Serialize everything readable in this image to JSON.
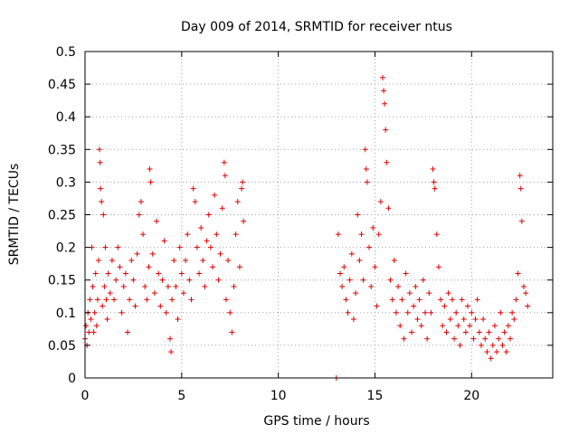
{
  "chart_data": {
    "type": "scatter",
    "title": "Day 009 of 2014, SRMTID for receiver ntus",
    "xlabel": "GPS time / hours",
    "ylabel": "SRMTID / TECUs",
    "xlim": [
      0,
      24.2
    ],
    "ylim": [
      0,
      0.5
    ],
    "x_ticks": [
      0,
      5,
      10,
      15,
      20
    ],
    "x_tick_labels": [
      "0",
      "5",
      "10",
      "15",
      "20"
    ],
    "y_ticks": [
      0,
      0.05,
      0.1,
      0.15,
      0.2,
      0.25,
      0.3,
      0.35,
      0.4,
      0.45,
      0.5
    ],
    "y_tick_labels": [
      "0",
      "0.05",
      "0.1",
      "0.15",
      "0.2",
      "0.25",
      "0.3",
      "0.35",
      "0.4",
      "0.45",
      "0.5"
    ],
    "grid": true,
    "marker": "+",
    "color": "#e00000",
    "series": [
      {
        "name": "SRMTID",
        "points": [
          [
            0.0,
            0.06
          ],
          [
            0.05,
            0.08
          ],
          [
            0.1,
            0.05
          ],
          [
            0.15,
            0.1
          ],
          [
            0.2,
            0.07
          ],
          [
            0.25,
            0.12
          ],
          [
            0.3,
            0.09
          ],
          [
            0.35,
            0.2
          ],
          [
            0.4,
            0.14
          ],
          [
            0.45,
            0.07
          ],
          [
            0.5,
            0.1
          ],
          [
            0.55,
            0.16
          ],
          [
            0.6,
            0.08
          ],
          [
            0.65,
            0.12
          ],
          [
            0.7,
            0.18
          ],
          [
            0.75,
            0.35
          ],
          [
            0.78,
            0.33
          ],
          [
            0.8,
            0.29
          ],
          [
            0.85,
            0.27
          ],
          [
            0.9,
            0.11
          ],
          [
            0.95,
            0.25
          ],
          [
            1.0,
            0.14
          ],
          [
            1.05,
            0.2
          ],
          [
            1.1,
            0.12
          ],
          [
            1.15,
            0.09
          ],
          [
            1.2,
            0.16
          ],
          [
            1.3,
            0.13
          ],
          [
            1.4,
            0.18
          ],
          [
            1.5,
            0.12
          ],
          [
            1.6,
            0.15
          ],
          [
            1.7,
            0.2
          ],
          [
            1.8,
            0.17
          ],
          [
            1.9,
            0.1
          ],
          [
            2.0,
            0.14
          ],
          [
            2.1,
            0.16
          ],
          [
            2.2,
            0.07
          ],
          [
            2.3,
            0.12
          ],
          [
            2.4,
            0.18
          ],
          [
            2.5,
            0.15
          ],
          [
            2.6,
            0.11
          ],
          [
            2.7,
            0.19
          ],
          [
            2.8,
            0.25
          ],
          [
            2.9,
            0.27
          ],
          [
            3.0,
            0.22
          ],
          [
            3.1,
            0.14
          ],
          [
            3.2,
            0.12
          ],
          [
            3.3,
            0.17
          ],
          [
            3.35,
            0.32
          ],
          [
            3.4,
            0.3
          ],
          [
            3.5,
            0.19
          ],
          [
            3.6,
            0.13
          ],
          [
            3.7,
            0.24
          ],
          [
            3.8,
            0.16
          ],
          [
            3.9,
            0.11
          ],
          [
            4.0,
            0.15
          ],
          [
            4.1,
            0.21
          ],
          [
            4.2,
            0.1
          ],
          [
            4.3,
            0.14
          ],
          [
            4.4,
            0.06
          ],
          [
            4.45,
            0.04
          ],
          [
            4.5,
            0.12
          ],
          [
            4.6,
            0.18
          ],
          [
            4.7,
            0.14
          ],
          [
            4.8,
            0.09
          ],
          [
            4.9,
            0.2
          ],
          [
            5.0,
            0.16
          ],
          [
            5.1,
            0.13
          ],
          [
            5.2,
            0.18
          ],
          [
            5.3,
            0.22
          ],
          [
            5.4,
            0.15
          ],
          [
            5.5,
            0.12
          ],
          [
            5.6,
            0.29
          ],
          [
            5.7,
            0.27
          ],
          [
            5.8,
            0.2
          ],
          [
            5.9,
            0.16
          ],
          [
            6.0,
            0.23
          ],
          [
            6.1,
            0.18
          ],
          [
            6.2,
            0.14
          ],
          [
            6.3,
            0.21
          ],
          [
            6.4,
            0.25
          ],
          [
            6.5,
            0.2
          ],
          [
            6.6,
            0.17
          ],
          [
            6.7,
            0.28
          ],
          [
            6.8,
            0.22
          ],
          [
            6.9,
            0.15
          ],
          [
            7.0,
            0.19
          ],
          [
            7.1,
            0.26
          ],
          [
            7.2,
            0.33
          ],
          [
            7.25,
            0.31
          ],
          [
            7.3,
            0.12
          ],
          [
            7.4,
            0.18
          ],
          [
            7.5,
            0.1
          ],
          [
            7.6,
            0.07
          ],
          [
            7.7,
            0.14
          ],
          [
            7.8,
            0.22
          ],
          [
            7.9,
            0.27
          ],
          [
            8.0,
            0.17
          ],
          [
            8.1,
            0.29
          ],
          [
            8.15,
            0.3
          ],
          [
            8.2,
            0.24
          ],
          [
            13.0,
            0.0
          ],
          [
            13.1,
            0.22
          ],
          [
            13.2,
            0.16
          ],
          [
            13.3,
            0.14
          ],
          [
            13.4,
            0.17
          ],
          [
            13.5,
            0.12
          ],
          [
            13.6,
            0.1
          ],
          [
            13.7,
            0.15
          ],
          [
            13.8,
            0.19
          ],
          [
            13.9,
            0.09
          ],
          [
            14.0,
            0.13
          ],
          [
            14.1,
            0.25
          ],
          [
            14.2,
            0.18
          ],
          [
            14.3,
            0.22
          ],
          [
            14.4,
            0.15
          ],
          [
            14.5,
            0.35
          ],
          [
            14.55,
            0.32
          ],
          [
            14.6,
            0.3
          ],
          [
            14.7,
            0.2
          ],
          [
            14.8,
            0.14
          ],
          [
            14.9,
            0.23
          ],
          [
            15.0,
            0.17
          ],
          [
            15.1,
            0.11
          ],
          [
            15.2,
            0.22
          ],
          [
            15.3,
            0.27
          ],
          [
            15.4,
            0.46
          ],
          [
            15.45,
            0.44
          ],
          [
            15.5,
            0.42
          ],
          [
            15.55,
            0.38
          ],
          [
            15.6,
            0.33
          ],
          [
            15.7,
            0.26
          ],
          [
            15.8,
            0.15
          ],
          [
            15.9,
            0.12
          ],
          [
            16.0,
            0.18
          ],
          [
            16.1,
            0.1
          ],
          [
            16.2,
            0.14
          ],
          [
            16.3,
            0.08
          ],
          [
            16.4,
            0.12
          ],
          [
            16.5,
            0.06
          ],
          [
            16.6,
            0.16
          ],
          [
            16.7,
            0.1
          ],
          [
            16.8,
            0.13
          ],
          [
            16.9,
            0.07
          ],
          [
            17.0,
            0.11
          ],
          [
            17.1,
            0.14
          ],
          [
            17.2,
            0.09
          ],
          [
            17.3,
            0.12
          ],
          [
            17.4,
            0.08
          ],
          [
            17.5,
            0.15
          ],
          [
            17.6,
            0.1
          ],
          [
            17.7,
            0.06
          ],
          [
            17.8,
            0.13
          ],
          [
            17.9,
            0.1
          ],
          [
            18.0,
            0.32
          ],
          [
            18.05,
            0.3
          ],
          [
            18.1,
            0.29
          ],
          [
            18.2,
            0.22
          ],
          [
            18.3,
            0.17
          ],
          [
            18.4,
            0.12
          ],
          [
            18.5,
            0.08
          ],
          [
            18.6,
            0.11
          ],
          [
            18.7,
            0.07
          ],
          [
            18.8,
            0.13
          ],
          [
            18.9,
            0.09
          ],
          [
            19.0,
            0.12
          ],
          [
            19.1,
            0.06
          ],
          [
            19.2,
            0.1
          ],
          [
            19.3,
            0.08
          ],
          [
            19.4,
            0.05
          ],
          [
            19.5,
            0.12
          ],
          [
            19.6,
            0.09
          ],
          [
            19.7,
            0.07
          ],
          [
            19.8,
            0.11
          ],
          [
            19.9,
            0.08
          ],
          [
            20.0,
            0.1
          ],
          [
            20.1,
            0.06
          ],
          [
            20.2,
            0.09
          ],
          [
            20.3,
            0.12
          ],
          [
            20.4,
            0.07
          ],
          [
            20.5,
            0.05
          ],
          [
            20.6,
            0.09
          ],
          [
            20.7,
            0.06
          ],
          [
            20.8,
            0.04
          ],
          [
            20.9,
            0.07
          ],
          [
            21.0,
            0.03
          ],
          [
            21.1,
            0.05
          ],
          [
            21.2,
            0.08
          ],
          [
            21.3,
            0.04
          ],
          [
            21.4,
            0.06
          ],
          [
            21.5,
            0.1
          ],
          [
            21.6,
            0.05
          ],
          [
            21.7,
            0.07
          ],
          [
            21.8,
            0.04
          ],
          [
            21.9,
            0.08
          ],
          [
            22.0,
            0.06
          ],
          [
            22.1,
            0.1
          ],
          [
            22.2,
            0.09
          ],
          [
            22.3,
            0.12
          ],
          [
            22.4,
            0.16
          ],
          [
            22.5,
            0.31
          ],
          [
            22.55,
            0.29
          ],
          [
            22.6,
            0.24
          ],
          [
            22.7,
            0.14
          ],
          [
            22.8,
            0.13
          ],
          [
            22.9,
            0.11
          ]
        ]
      }
    ]
  }
}
